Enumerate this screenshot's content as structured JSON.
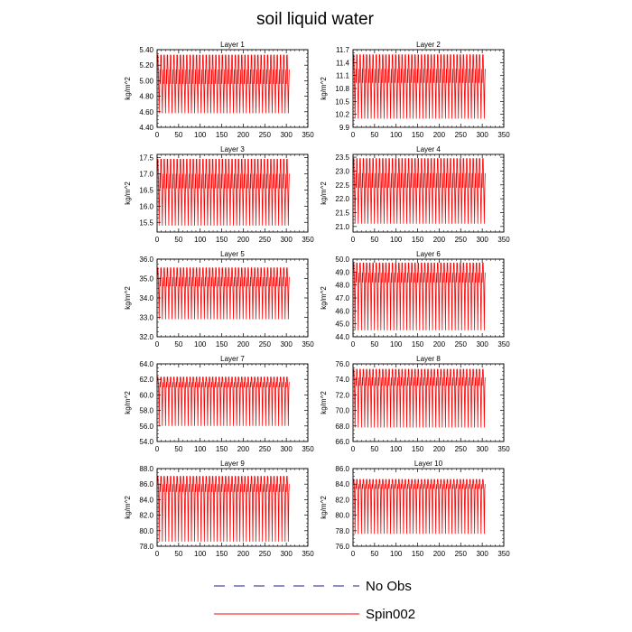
{
  "title": "soil liquid water",
  "legend": [
    {
      "label": "No Obs",
      "color": "#1f1f8f",
      "style": "dashed"
    },
    {
      "label": "Spin002",
      "color": "#ff0000",
      "style": "solid"
    }
  ],
  "chart_data": [
    {
      "type": "line",
      "title": "Layer 1",
      "ylabel": "kg/m^2",
      "xlim": [
        0,
        350
      ],
      "xticks": [
        0,
        50,
        100,
        150,
        200,
        250,
        300,
        350
      ],
      "ylim": [
        4.4,
        5.4
      ],
      "yticks": [
        "4.40",
        "4.60",
        "4.80",
        "5.00",
        "5.20",
        "5.40"
      ],
      "series_name": "Spin002",
      "x_end": 307,
      "period": 7.5,
      "peak": 5.33,
      "plateau": 4.96,
      "trough": 4.58
    },
    {
      "type": "line",
      "title": "Layer 2",
      "ylabel": "kg/m^2",
      "xlim": [
        0,
        350
      ],
      "xticks": [
        0,
        50,
        100,
        150,
        200,
        250,
        300,
        350
      ],
      "ylim": [
        9.9,
        11.7
      ],
      "yticks": [
        "9.9",
        "10.2",
        "10.5",
        "10.8",
        "11.1",
        "11.4",
        "11.7"
      ],
      "series_name": "Spin002",
      "x_end": 307,
      "period": 7.5,
      "peak": 11.58,
      "plateau": 10.93,
      "trough": 10.1
    },
    {
      "type": "line",
      "title": "Layer 3",
      "ylabel": "kg/m^2",
      "xlim": [
        0,
        350
      ],
      "xticks": [
        0,
        50,
        100,
        150,
        200,
        250,
        300,
        350
      ],
      "ylim": [
        15.2,
        17.6
      ],
      "yticks": [
        "15.5",
        "16.0",
        "16.5",
        "17.0",
        "17.5"
      ],
      "series_name": "Spin002",
      "x_end": 307,
      "period": 7.5,
      "peak": 17.45,
      "plateau": 16.55,
      "trough": 15.4
    },
    {
      "type": "line",
      "title": "Layer 4",
      "ylabel": "kg/m^2",
      "xlim": [
        0,
        350
      ],
      "xticks": [
        0,
        50,
        100,
        150,
        200,
        250,
        300,
        350
      ],
      "ylim": [
        20.8,
        23.6
      ],
      "yticks": [
        "21.0",
        "21.5",
        "22.0",
        "22.5",
        "23.0",
        "23.5"
      ],
      "series_name": "Spin002",
      "x_end": 307,
      "period": 7.5,
      "peak": 23.45,
      "plateau": 22.4,
      "trough": 21.1
    },
    {
      "type": "line",
      "title": "Layer 5",
      "ylabel": "kg/m^2",
      "xlim": [
        0,
        350
      ],
      "xticks": [
        0,
        50,
        100,
        150,
        200,
        250,
        300,
        350
      ],
      "ylim": [
        32.0,
        36.0
      ],
      "yticks": [
        "32.0",
        "33.0",
        "34.0",
        "35.0",
        "36.0"
      ],
      "series_name": "Spin002",
      "x_end": 307,
      "period": 7.5,
      "peak": 35.55,
      "plateau": 34.6,
      "trough": 32.9
    },
    {
      "type": "line",
      "title": "Layer 6",
      "ylabel": "kg/m^2",
      "xlim": [
        0,
        350
      ],
      "xticks": [
        0,
        50,
        100,
        150,
        200,
        250,
        300,
        350
      ],
      "ylim": [
        44.0,
        50.0
      ],
      "yticks": [
        "44.0",
        "45.0",
        "46.0",
        "47.0",
        "48.0",
        "49.0",
        "50.0"
      ],
      "series_name": "Spin002",
      "x_end": 307,
      "period": 7.5,
      "peak": 49.7,
      "plateau": 48.2,
      "trough": 44.5
    },
    {
      "type": "line",
      "title": "Layer 7",
      "ylabel": "kg/m^2",
      "xlim": [
        0,
        350
      ],
      "xticks": [
        0,
        50,
        100,
        150,
        200,
        250,
        300,
        350
      ],
      "ylim": [
        54.0,
        64.0
      ],
      "yticks": [
        "54.0",
        "56.0",
        "58.0",
        "60.0",
        "62.0",
        "64.0"
      ],
      "series_name": "Spin002",
      "x_end": 307,
      "period": 7.5,
      "peak": 62.3,
      "plateau": 61.0,
      "trough": 56.0
    },
    {
      "type": "line",
      "title": "Layer 8",
      "ylabel": "kg/m^2",
      "xlim": [
        0,
        350
      ],
      "xticks": [
        0,
        50,
        100,
        150,
        200,
        250,
        300,
        350
      ],
      "ylim": [
        66.0,
        76.0
      ],
      "yticks": [
        "66.0",
        "68.0",
        "70.0",
        "72.0",
        "74.0",
        "76.0"
      ],
      "series_name": "Spin002",
      "x_end": 307,
      "period": 7.5,
      "peak": 75.3,
      "plateau": 73.2,
      "trough": 67.8
    },
    {
      "type": "line",
      "title": "Layer 9",
      "ylabel": "kg/m^2",
      "xlim": [
        0,
        350
      ],
      "xticks": [
        0,
        50,
        100,
        150,
        200,
        250,
        300,
        350
      ],
      "ylim": [
        78.0,
        88.0
      ],
      "yticks": [
        "78.0",
        "80.0",
        "82.0",
        "84.0",
        "86.0",
        "88.0"
      ],
      "series_name": "Spin002",
      "x_end": 307,
      "period": 7.5,
      "peak": 87.0,
      "plateau": 85.0,
      "trough": 78.6
    },
    {
      "type": "line",
      "title": "Layer 10",
      "ylabel": "kg/m^2",
      "xlim": [
        0,
        350
      ],
      "xticks": [
        0,
        50,
        100,
        150,
        200,
        250,
        300,
        350
      ],
      "ylim": [
        76.0,
        86.0
      ],
      "yticks": [
        "76.0",
        "78.0",
        "80.0",
        "82.0",
        "84.0",
        "86.0"
      ],
      "series_name": "Spin002",
      "x_end": 307,
      "period": 7.5,
      "peak": 84.6,
      "plateau": 83.4,
      "trough": 77.6
    }
  ]
}
